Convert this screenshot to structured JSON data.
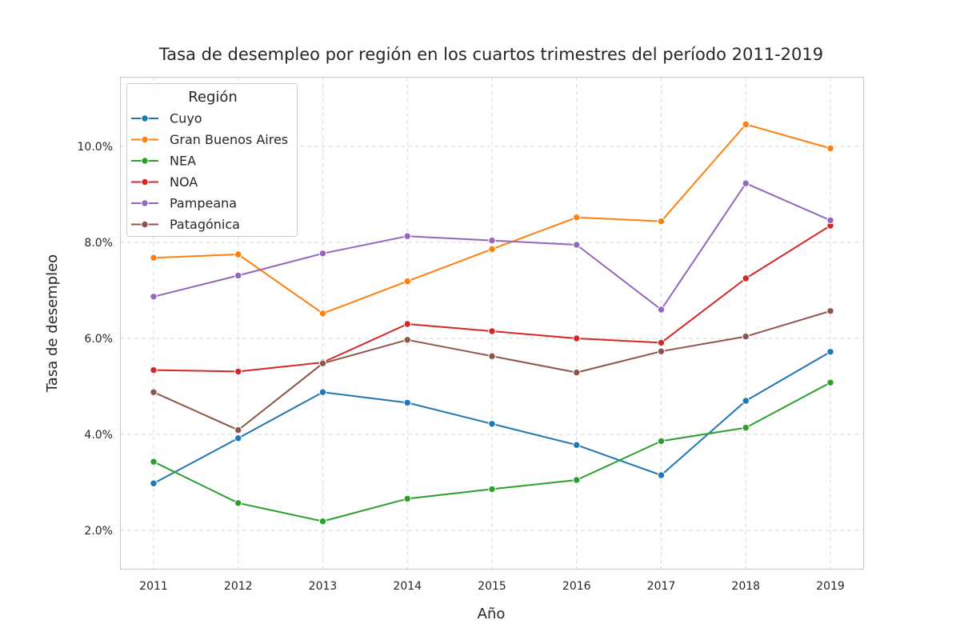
{
  "chart_data": {
    "type": "line",
    "title": "Tasa de desempleo por región en los cuartos trimestres del período 2011-2019",
    "xlabel": "Año",
    "ylabel": "Tasa de desempleo",
    "x": [
      "2011",
      "2012",
      "2013",
      "2014",
      "2015",
      "2016",
      "2017",
      "2018",
      "2019"
    ],
    "y_ticks": [
      "2.0%",
      "4.0%",
      "6.0%",
      "8.0%",
      "10.0%"
    ],
    "y_tick_values": [
      2.0,
      4.0,
      6.0,
      8.0,
      10.0
    ],
    "ylim": [
      1.2,
      11.5
    ],
    "grid": true,
    "legend": {
      "title": "Región",
      "placement": "top-left"
    },
    "series": [
      {
        "name": "Cuyo",
        "color": "#1f77b4",
        "values": [
          2.98,
          3.92,
          4.88,
          4.66,
          4.22,
          3.78,
          3.15,
          4.7,
          5.72
        ]
      },
      {
        "name": "Gran Buenos Aires",
        "color": "#ff7f0e",
        "values": [
          7.68,
          7.75,
          6.52,
          7.19,
          7.86,
          8.52,
          8.44,
          10.46,
          9.96
        ]
      },
      {
        "name": "NEA",
        "color": "#2ca02c",
        "values": [
          3.43,
          2.57,
          2.19,
          2.66,
          2.86,
          3.05,
          3.86,
          4.14,
          5.08
        ]
      },
      {
        "name": "NOA",
        "color": "#d62728",
        "values": [
          5.34,
          5.31,
          5.5,
          6.3,
          6.15,
          6.0,
          5.91,
          7.25,
          8.35
        ]
      },
      {
        "name": "Pampeana",
        "color": "#9467bd",
        "values": [
          6.87,
          7.31,
          7.77,
          8.13,
          8.04,
          7.95,
          6.6,
          9.23,
          8.46
        ]
      },
      {
        "name": "Patagónica",
        "color": "#8c564b",
        "values": [
          4.88,
          4.09,
          5.48,
          5.97,
          5.63,
          5.29,
          5.73,
          6.04,
          6.57
        ]
      }
    ]
  }
}
